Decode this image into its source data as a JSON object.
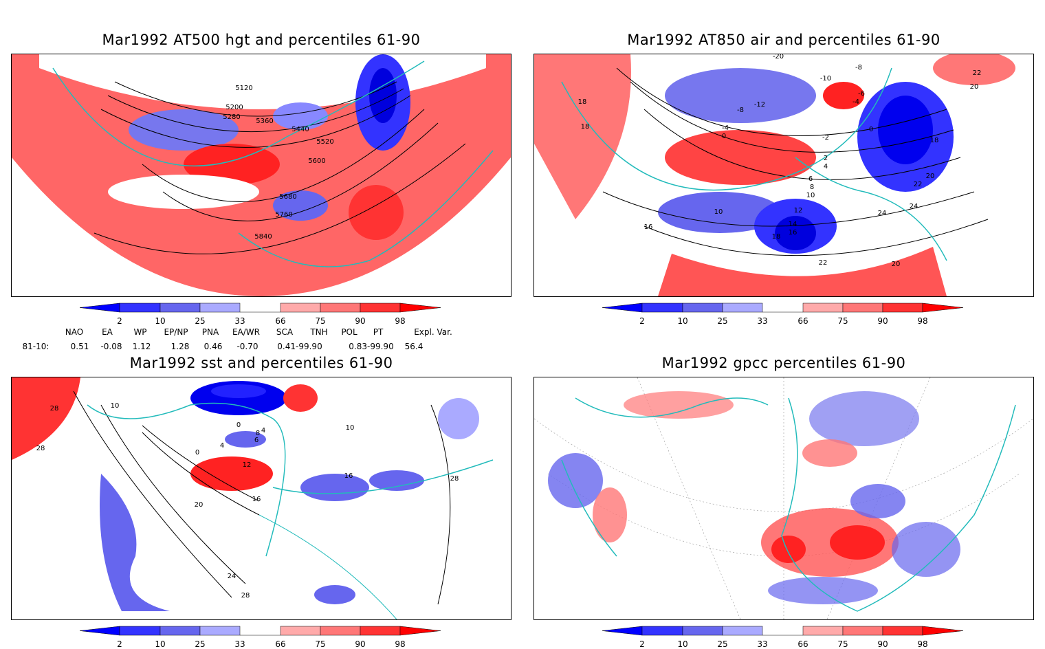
{
  "panels": [
    {
      "id": "p1",
      "title": "Mar1992 AT500 hgt and percentiles 61-90",
      "contour_labels": [
        "5120",
        "5200",
        "5280",
        "5360",
        "5440",
        "5520",
        "5600",
        "5680",
        "5760",
        "5840"
      ]
    },
    {
      "id": "p2",
      "title": "Mar1992 AT850 air and percentiles 61-90",
      "contour_labels": [
        "-20",
        "-12",
        "-10",
        "-8",
        "-8",
        "-6",
        "-4",
        "-4",
        "-2",
        "0",
        "0",
        "2",
        "4",
        "6",
        "8",
        "10",
        "10",
        "12",
        "14",
        "16",
        "18",
        "18",
        "18",
        "16",
        "18",
        "20",
        "20",
        "22",
        "22",
        "22",
        "24",
        "24",
        "20"
      ]
    },
    {
      "id": "p3",
      "title": "Mar1992 sst and percentiles 61-90",
      "contour_labels": [
        "28",
        "28",
        "0",
        "0",
        "4",
        "4",
        "6",
        "8",
        "10",
        "12",
        "16",
        "20",
        "24",
        "28",
        "16",
        "28",
        "10"
      ]
    },
    {
      "id": "p4",
      "title": "Mar1992 gpcc percentiles 61-90",
      "contour_labels": []
    }
  ],
  "colorbar": {
    "ticks": [
      "2",
      "10",
      "25",
      "33",
      "66",
      "75",
      "90",
      "98"
    ],
    "colors": {
      "b1": "#0000ff",
      "b2": "#3333ff",
      "b3": "#6666ee",
      "b4": "#aaaaff",
      "r1": "#ffaaaa",
      "r2": "#ff7777",
      "r3": "#ff3333",
      "r4": "#ff0000"
    }
  },
  "indices": {
    "headers": [
      "NAO",
      "EA",
      "WP",
      "EP/NP",
      "PNA",
      "EA/WR",
      "SCA",
      "TNH",
      "POL",
      "PT",
      "Expl. Var."
    ],
    "row_label": "81-10:",
    "values": [
      "0.51",
      "-0.08",
      "1.12",
      "1.28",
      "0.46",
      "-0.70",
      "0.41-99.90",
      "",
      "0.83-99.90",
      "",
      "56.4"
    ]
  }
}
